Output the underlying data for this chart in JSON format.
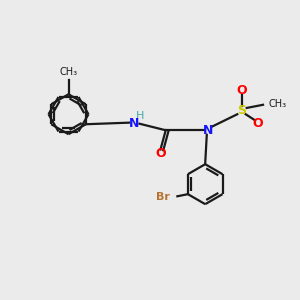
{
  "bg_color": "#ebebeb",
  "bond_color": "#1a1a1a",
  "atom_colors": {
    "N": "#1414ff",
    "O": "#ff0000",
    "S": "#cccc00",
    "Br": "#b87333",
    "H": "#44aaaa",
    "C": "#1a1a1a"
  },
  "figsize": [
    3.0,
    3.0
  ],
  "dpi": 100,
  "lw": 1.6,
  "doff": 0.06,
  "r": 0.38
}
